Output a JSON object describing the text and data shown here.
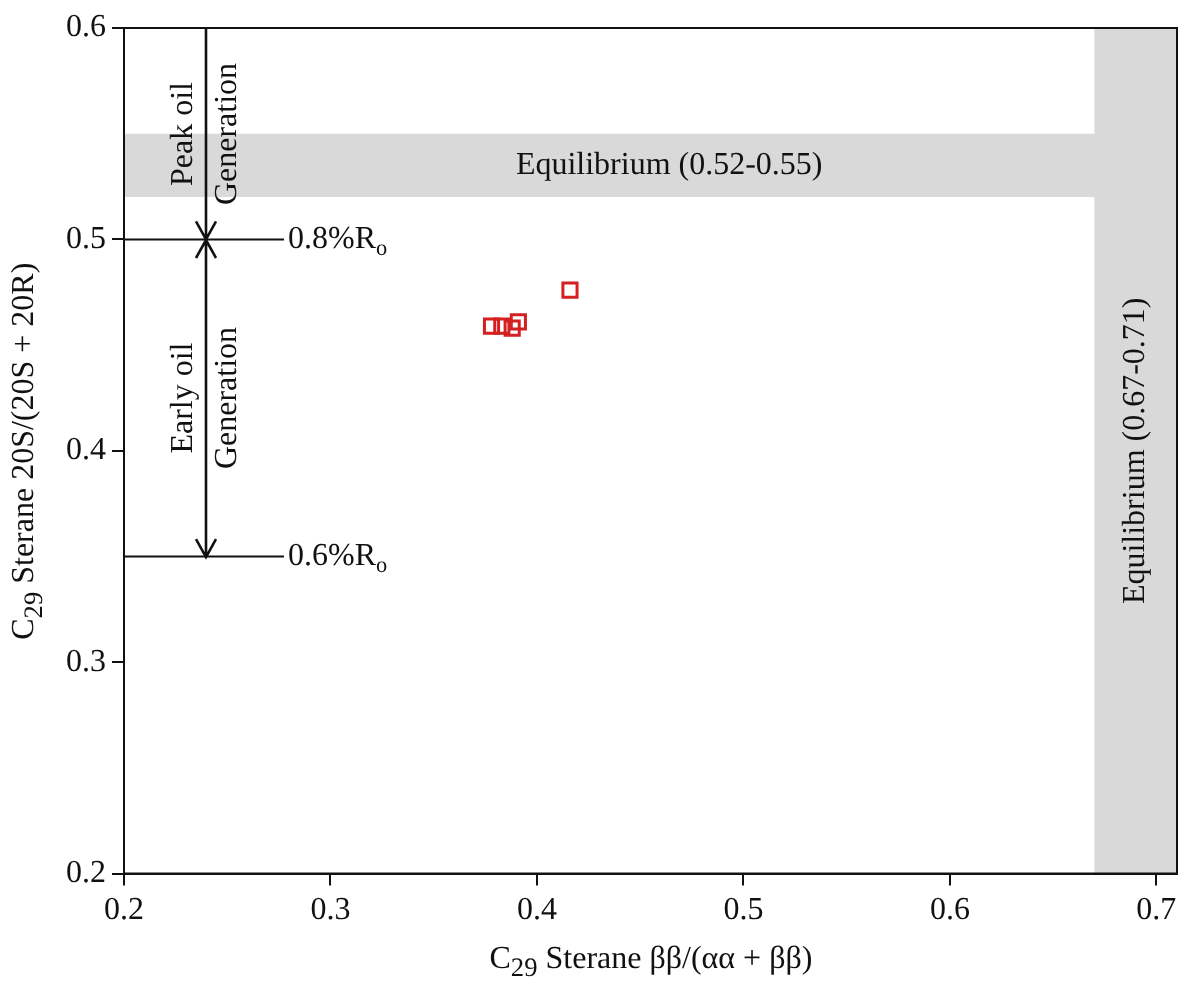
{
  "chart_data": {
    "type": "scatter",
    "xlabel": "C$_{29}$ Sterane ββ/(αα + ββ)",
    "ylabel": "C$_{29}$ Sterane 20S/(20S + 20R)",
    "x": [
      0.378,
      0.383,
      0.388,
      0.391,
      0.416
    ],
    "values": [
      0.459,
      0.459,
      0.458,
      0.461,
      0.476
    ],
    "color": "#d42020",
    "marker": "square",
    "xlim": [
      0.2,
      0.71
    ],
    "xticks": [
      0.2,
      0.3,
      0.4,
      0.5,
      0.6,
      0.7
    ],
    "ylim": [
      0.2,
      0.6
    ],
    "yticks": [
      0.2,
      0.3,
      0.4,
      0.5,
      0.6
    ],
    "bands": [
      {
        "axis": "y",
        "from": 0.52,
        "to": 0.55,
        "label": "Equilibrium (0.52-0.55)",
        "color": "#d9d9d9"
      },
      {
        "axis": "x",
        "from": 0.67,
        "to": 0.71,
        "label": "Equilibrium (0.67-0.71)",
        "color": "#d9d9d9"
      }
    ],
    "ref_lines": [
      {
        "axis": "y",
        "value": 0.5,
        "label": "0.8%R$_{o}$"
      },
      {
        "axis": "y",
        "value": 0.35,
        "label": "0.6%R$_{o}$"
      }
    ],
    "annotations": [
      {
        "text": "Peak oil Generation",
        "x": 0.24,
        "y": 0.5
      },
      {
        "text": "Early oil Generation",
        "x": 0.24,
        "y": 0.35
      }
    ],
    "grid": false,
    "legend": false
  }
}
